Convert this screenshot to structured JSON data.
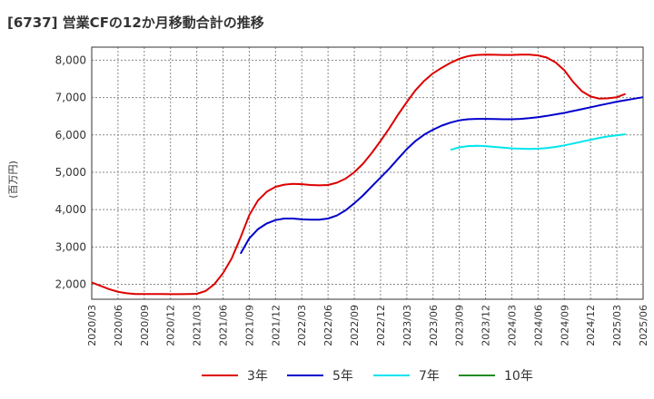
{
  "title": "[6737]  営業CFの12か月移動合計の推移",
  "chart_data": {
    "type": "line",
    "ylabel": "(百万円)",
    "xlabel": "",
    "ylim": [
      1600,
      8350
    ],
    "yticks": [
      2000,
      3000,
      4000,
      5000,
      6000,
      7000,
      8000
    ],
    "ytick_labels": [
      "2,000",
      "3,000",
      "4,000",
      "5,000",
      "6,000",
      "7,000",
      "8,000"
    ],
    "xtick_labels": [
      "2020/03",
      "2020/06",
      "2020/09",
      "2020/12",
      "2021/03",
      "2021/06",
      "2021/09",
      "2021/12",
      "2022/03",
      "2022/06",
      "2022/09",
      "2022/12",
      "2023/03",
      "2023/06",
      "2023/09",
      "2023/12",
      "2024/03",
      "2024/06",
      "2024/09",
      "2024/12",
      "2025/03",
      "2025/06"
    ],
    "x_start": "2020/03",
    "x_end": "2025/06",
    "grid": true,
    "legend_position": "bottom",
    "series": [
      {
        "name": "3年",
        "color": "#dd0000",
        "start": "2020/03",
        "values": [
          2050,
          1960,
          1870,
          1800,
          1760,
          1740,
          1740,
          1740,
          1740,
          1735,
          1735,
          1740,
          1745,
          1820,
          2000,
          2300,
          2700,
          3250,
          3850,
          4250,
          4480,
          4610,
          4670,
          4690,
          4680,
          4660,
          4650,
          4660,
          4720,
          4830,
          5000,
          5230,
          5520,
          5840,
          6180,
          6540,
          6880,
          7200,
          7450,
          7650,
          7800,
          7930,
          8040,
          8110,
          8140,
          8150,
          8145,
          8140,
          8140,
          8150,
          8150,
          8130,
          8070,
          7940,
          7730,
          7420,
          7170,
          7030,
          6970,
          6980,
          7010,
          7100
        ]
      },
      {
        "name": "5年",
        "color": "#0000cc",
        "start": "2021/08",
        "values": [
          2820,
          3230,
          3480,
          3630,
          3720,
          3760,
          3760,
          3740,
          3730,
          3730,
          3760,
          3840,
          3980,
          4170,
          4380,
          4620,
          4860,
          5100,
          5360,
          5620,
          5840,
          6010,
          6140,
          6250,
          6330,
          6390,
          6420,
          6430,
          6430,
          6425,
          6420,
          6420,
          6430,
          6450,
          6475,
          6510,
          6550,
          6590,
          6640,
          6690,
          6740,
          6790,
          6840,
          6890,
          6930,
          6970,
          7010
        ]
      },
      {
        "name": "7年",
        "color": "#00e5ee",
        "start": "2023/08",
        "values": [
          5600,
          5670,
          5700,
          5710,
          5700,
          5680,
          5660,
          5640,
          5630,
          5625,
          5630,
          5650,
          5680,
          5720,
          5770,
          5820,
          5870,
          5920,
          5960,
          5990,
          6020
        ]
      },
      {
        "name": "10年",
        "color": "#228b22",
        "start": "2025/03",
        "values": []
      }
    ]
  }
}
